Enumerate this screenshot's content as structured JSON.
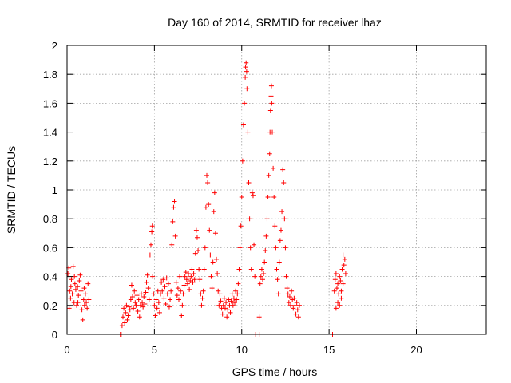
{
  "chart_data": {
    "type": "scatter",
    "title": "Day 160 of 2014, SRMTID for receiver lhaz",
    "xlabel": "GPS time / hours",
    "ylabel": "SRMTID / TECUs",
    "xlim": [
      0,
      24
    ],
    "ylim": [
      0,
      2
    ],
    "xticks": [
      0,
      5,
      10,
      15,
      20
    ],
    "xtick_labels": [
      "0",
      "5",
      "10",
      "15",
      "20"
    ],
    "yticks": [
      0,
      0.2,
      0.4,
      0.6,
      0.8,
      1.0,
      1.2,
      1.4,
      1.6,
      1.8,
      2.0
    ],
    "ytick_labels": [
      "0",
      "0.2",
      "0.4",
      "0.6",
      "0.8",
      "1",
      "1.2",
      "1.4",
      "1.6",
      "1.8",
      "2"
    ],
    "grid": true,
    "marker": "+",
    "color": "#ff0000",
    "series": [
      {
        "name": "SRMTID",
        "points": [
          [
            0.05,
            0.42
          ],
          [
            0.1,
            0.46
          ],
          [
            0.15,
            0.3
          ],
          [
            0.2,
            0.25
          ],
          [
            0.25,
            0.38
          ],
          [
            0.3,
            0.28
          ],
          [
            0.35,
            0.47
          ],
          [
            0.4,
            0.22
          ],
          [
            0.45,
            0.35
          ],
          [
            0.5,
            0.31
          ],
          [
            0.55,
            0.2
          ],
          [
            0.6,
            0.33
          ],
          [
            0.65,
            0.27
          ],
          [
            0.7,
            0.37
          ],
          [
            0.75,
            0.41
          ],
          [
            0.8,
            0.3
          ],
          [
            0.85,
            0.17
          ],
          [
            0.9,
            0.1
          ],
          [
            0.95,
            0.24
          ],
          [
            1.0,
            0.2
          ],
          [
            1.05,
            0.28
          ],
          [
            1.1,
            0.22
          ],
          [
            1.15,
            0.18
          ],
          [
            1.2,
            0.35
          ],
          [
            1.25,
            0.24
          ],
          [
            0.12,
            0.18
          ],
          [
            0.22,
            0.33
          ],
          [
            0.42,
            0.4
          ],
          [
            0.62,
            0.22
          ],
          [
            0.98,
            0.32
          ],
          [
            3.05,
            0.0
          ],
          [
            3.1,
            0.0
          ],
          [
            3.15,
            0.06
          ],
          [
            3.2,
            0.12
          ],
          [
            3.25,
            0.18
          ],
          [
            3.3,
            0.08
          ],
          [
            3.35,
            0.15
          ],
          [
            3.4,
            0.2
          ],
          [
            3.45,
            0.1
          ],
          [
            3.5,
            0.13
          ],
          [
            3.55,
            0.19
          ],
          [
            3.6,
            0.17
          ],
          [
            3.65,
            0.24
          ],
          [
            3.7,
            0.34
          ],
          [
            3.75,
            0.26
          ],
          [
            3.8,
            0.18
          ],
          [
            3.85,
            0.3
          ],
          [
            3.9,
            0.22
          ],
          [
            3.95,
            0.2
          ],
          [
            4.0,
            0.27
          ],
          [
            4.05,
            0.16
          ],
          [
            4.1,
            0.24
          ],
          [
            4.15,
            0.12
          ],
          [
            4.2,
            0.2
          ],
          [
            4.25,
            0.28
          ],
          [
            4.3,
            0.22
          ],
          [
            4.35,
            0.19
          ],
          [
            4.4,
            0.26
          ],
          [
            4.45,
            0.21
          ],
          [
            4.5,
            0.29
          ],
          [
            4.55,
            0.36
          ],
          [
            4.6,
            0.41
          ],
          [
            4.65,
            0.32
          ],
          [
            4.7,
            0.24
          ],
          [
            4.75,
            0.55
          ],
          [
            4.8,
            0.62
          ],
          [
            4.85,
            0.71
          ],
          [
            4.88,
            0.75
          ],
          [
            4.9,
            0.4
          ],
          [
            4.95,
            0.28
          ],
          [
            5.0,
            0.2
          ],
          [
            5.05,
            0.13
          ],
          [
            5.1,
            0.24
          ],
          [
            5.15,
            0.18
          ],
          [
            5.2,
            0.3
          ],
          [
            5.25,
            0.22
          ],
          [
            5.3,
            0.15
          ],
          [
            5.35,
            0.28
          ],
          [
            5.4,
            0.36
          ],
          [
            5.45,
            0.3
          ],
          [
            5.5,
            0.38
          ],
          [
            5.55,
            0.25
          ],
          [
            5.6,
            0.33
          ],
          [
            5.65,
            0.21
          ],
          [
            5.7,
            0.39
          ],
          [
            5.75,
            0.28
          ],
          [
            5.8,
            0.35
          ],
          [
            5.85,
            0.19
          ],
          [
            5.9,
            0.24
          ],
          [
            5.95,
            0.3
          ],
          [
            6.0,
            0.62
          ],
          [
            6.05,
            0.78
          ],
          [
            6.1,
            0.88
          ],
          [
            6.15,
            0.92
          ],
          [
            6.2,
            0.68
          ],
          [
            6.25,
            0.36
          ],
          [
            6.3,
            0.27
          ],
          [
            6.35,
            0.32
          ],
          [
            6.4,
            0.24
          ],
          [
            6.45,
            0.4
          ],
          [
            6.5,
            0.3
          ],
          [
            6.55,
            0.13
          ],
          [
            6.6,
            0.2
          ],
          [
            6.65,
            0.28
          ],
          [
            6.7,
            0.34
          ],
          [
            6.75,
            0.4
          ],
          [
            6.8,
            0.43
          ],
          [
            6.85,
            0.38
          ],
          [
            6.9,
            0.35
          ],
          [
            6.95,
            0.42
          ],
          [
            7.0,
            0.31
          ],
          [
            7.05,
            0.37
          ],
          [
            7.1,
            0.4
          ],
          [
            7.15,
            0.45
          ],
          [
            7.2,
            0.36
          ],
          [
            7.25,
            0.42
          ],
          [
            7.3,
            0.38
          ],
          [
            7.35,
            0.56
          ],
          [
            7.4,
            0.72
          ],
          [
            7.45,
            0.67
          ],
          [
            7.5,
            0.58
          ],
          [
            7.55,
            0.45
          ],
          [
            7.6,
            0.38
          ],
          [
            7.65,
            0.28
          ],
          [
            7.7,
            0.2
          ],
          [
            7.75,
            0.25
          ],
          [
            7.8,
            0.3
          ],
          [
            7.85,
            0.45
          ],
          [
            7.9,
            0.6
          ],
          [
            7.95,
            0.88
          ],
          [
            8.0,
            1.1
          ],
          [
            8.05,
            1.05
          ],
          [
            8.1,
            0.9
          ],
          [
            8.15,
            0.72
          ],
          [
            8.2,
            0.55
          ],
          [
            8.25,
            0.4
          ],
          [
            8.3,
            0.32
          ],
          [
            8.35,
            0.5
          ],
          [
            8.4,
            0.85
          ],
          [
            8.45,
            0.98
          ],
          [
            8.5,
            0.7
          ],
          [
            8.55,
            0.52
          ],
          [
            8.6,
            0.42
          ],
          [
            8.65,
            0.3
          ],
          [
            8.7,
            0.2
          ],
          [
            8.75,
            0.28
          ],
          [
            8.8,
            0.23
          ],
          [
            8.85,
            0.18
          ],
          [
            8.9,
            0.14
          ],
          [
            8.95,
            0.2
          ],
          [
            9.0,
            0.25
          ],
          [
            9.05,
            0.18
          ],
          [
            9.1,
            0.22
          ],
          [
            9.15,
            0.12
          ],
          [
            9.2,
            0.17
          ],
          [
            9.25,
            0.24
          ],
          [
            9.3,
            0.2
          ],
          [
            9.35,
            0.15
          ],
          [
            9.4,
            0.23
          ],
          [
            9.45,
            0.28
          ],
          [
            9.5,
            0.2
          ],
          [
            9.55,
            0.25
          ],
          [
            9.6,
            0.22
          ],
          [
            9.65,
            0.3
          ],
          [
            9.7,
            0.24
          ],
          [
            9.75,
            0.28
          ],
          [
            9.8,
            0.35
          ],
          [
            9.85,
            0.45
          ],
          [
            9.9,
            0.6
          ],
          [
            9.95,
            0.75
          ],
          [
            10.0,
            0.95
          ],
          [
            10.05,
            1.2
          ],
          [
            10.1,
            1.45
          ],
          [
            10.15,
            1.6
          ],
          [
            10.2,
            1.78
          ],
          [
            10.22,
            1.85
          ],
          [
            10.25,
            1.88
          ],
          [
            10.28,
            1.82
          ],
          [
            10.3,
            1.7
          ],
          [
            10.35,
            1.4
          ],
          [
            10.4,
            1.05
          ],
          [
            10.45,
            0.8
          ],
          [
            10.5,
            0.6
          ],
          [
            10.55,
            0.45
          ],
          [
            10.6,
            0.98
          ],
          [
            10.65,
            0.96
          ],
          [
            10.7,
            0.62
          ],
          [
            10.75,
            0.4
          ],
          [
            10.8,
            0.0
          ],
          [
            11.0,
            0.12
          ],
          [
            11.0,
            0.0
          ],
          [
            11.05,
            0.35
          ],
          [
            11.1,
            0.4
          ],
          [
            11.15,
            0.45
          ],
          [
            11.2,
            0.38
          ],
          [
            11.25,
            0.42
          ],
          [
            11.3,
            0.5
          ],
          [
            11.35,
            0.58
          ],
          [
            11.4,
            0.68
          ],
          [
            11.45,
            0.8
          ],
          [
            11.5,
            0.95
          ],
          [
            11.55,
            1.1
          ],
          [
            11.6,
            1.25
          ],
          [
            11.62,
            1.4
          ],
          [
            11.65,
            1.55
          ],
          [
            11.68,
            1.65
          ],
          [
            11.7,
            1.72
          ],
          [
            11.72,
            1.6
          ],
          [
            11.75,
            1.4
          ],
          [
            11.8,
            1.15
          ],
          [
            11.85,
            0.95
          ],
          [
            11.9,
            0.75
          ],
          [
            11.95,
            0.6
          ],
          [
            12.0,
            0.45
          ],
          [
            12.05,
            0.38
          ],
          [
            12.1,
            0.28
          ],
          [
            12.15,
            0.5
          ],
          [
            12.2,
            0.65
          ],
          [
            12.25,
            0.72
          ],
          [
            12.3,
            0.85
          ],
          [
            12.35,
            1.14
          ],
          [
            12.4,
            1.05
          ],
          [
            12.45,
            0.8
          ],
          [
            12.5,
            0.6
          ],
          [
            12.55,
            0.4
          ],
          [
            12.6,
            0.32
          ],
          [
            12.65,
            0.28
          ],
          [
            12.7,
            0.22
          ],
          [
            12.75,
            0.26
          ],
          [
            12.8,
            0.2
          ],
          [
            12.85,
            0.3
          ],
          [
            12.9,
            0.24
          ],
          [
            12.95,
            0.18
          ],
          [
            13.0,
            0.25
          ],
          [
            13.05,
            0.2
          ],
          [
            13.1,
            0.14
          ],
          [
            13.15,
            0.22
          ],
          [
            13.2,
            0.17
          ],
          [
            13.25,
            0.12
          ],
          [
            13.3,
            0.2
          ],
          [
            15.2,
            0.0
          ],
          [
            15.3,
            0.3
          ],
          [
            15.35,
            0.38
          ],
          [
            15.4,
            0.42
          ],
          [
            15.45,
            0.32
          ],
          [
            15.5,
            0.35
          ],
          [
            15.55,
            0.28
          ],
          [
            15.6,
            0.4
          ],
          [
            15.65,
            0.37
          ],
          [
            15.7,
            0.3
          ],
          [
            15.75,
            0.45
          ],
          [
            15.8,
            0.55
          ],
          [
            15.85,
            0.48
          ],
          [
            15.9,
            0.52
          ],
          [
            15.95,
            0.42
          ],
          [
            15.5,
            0.22
          ],
          [
            15.6,
            0.2
          ],
          [
            15.7,
            0.25
          ],
          [
            15.4,
            0.18
          ],
          [
            15.8,
            0.35
          ]
        ]
      }
    ]
  }
}
